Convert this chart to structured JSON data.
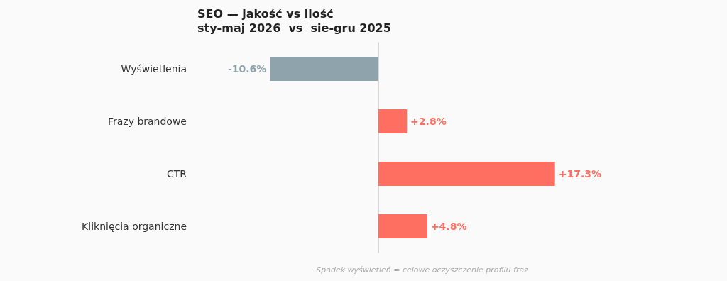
{
  "chart_data": {
    "type": "bar",
    "orientation": "horizontal",
    "title": "SEO — jakość vs ilość",
    "subtitle": "sty-maj 2026  vs  sie-gru 2025",
    "categories": [
      "Wyświetlenia",
      "Frazy brandowe",
      "CTR",
      "Kliknięcia organiczne"
    ],
    "values": [
      -10.6,
      2.8,
      17.3,
      4.8
    ],
    "colors": [
      "#8fa3ad",
      "#ff6f61",
      "#ff6f61",
      "#ff6f61"
    ],
    "value_labels": [
      "-10.6%",
      "+2.8%",
      "+17.3%",
      "+4.8%"
    ],
    "annotations": [
      "Spadek wyświetleń = celowe oczyszczenie profilu fraz"
    ]
  }
}
